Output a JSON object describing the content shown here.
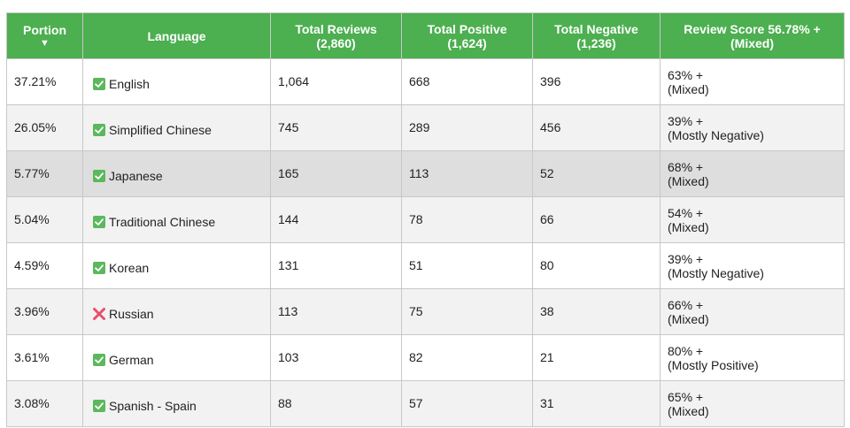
{
  "table": {
    "headers": {
      "portion": "Portion",
      "portion_sort": "▼",
      "language": "Language",
      "total_reviews_line1": "Total Reviews",
      "total_reviews_line2": "(2,860)",
      "total_positive_line1": "Total Positive",
      "total_positive_line2": "(1,624)",
      "total_negative_line1": "Total Negative",
      "total_negative_line2": "(1,236)",
      "review_score_line1": "Review Score 56.78% +",
      "review_score_line2": "(Mixed)"
    },
    "rows": [
      {
        "portion": "37.21%",
        "language": "English",
        "supported": true,
        "total": "1,064",
        "positive": "668",
        "negative": "396",
        "score": "63% +",
        "rating": "(Mixed)"
      },
      {
        "portion": "26.05%",
        "language": "Simplified Chinese",
        "supported": true,
        "total": "745",
        "positive": "289",
        "negative": "456",
        "score": "39% +",
        "rating": "(Mostly Negative)"
      },
      {
        "portion": "5.77%",
        "language": "Japanese",
        "supported": true,
        "total": "165",
        "positive": "113",
        "negative": "52",
        "score": "68% +",
        "rating": "(Mixed)"
      },
      {
        "portion": "5.04%",
        "language": "Traditional Chinese",
        "supported": true,
        "total": "144",
        "positive": "78",
        "negative": "66",
        "score": "54% +",
        "rating": "(Mixed)"
      },
      {
        "portion": "4.59%",
        "language": "Korean",
        "supported": true,
        "total": "131",
        "positive": "51",
        "negative": "80",
        "score": "39% +",
        "rating": "(Mostly Negative)"
      },
      {
        "portion": "3.96%",
        "language": "Russian",
        "supported": false,
        "total": "113",
        "positive": "75",
        "negative": "38",
        "score": "66% +",
        "rating": "(Mixed)"
      },
      {
        "portion": "3.61%",
        "language": "German",
        "supported": true,
        "total": "103",
        "positive": "82",
        "negative": "21",
        "score": "80% +",
        "rating": "(Mostly Positive)"
      },
      {
        "portion": "3.08%",
        "language": "Spanish - Spain",
        "supported": true,
        "total": "88",
        "positive": "57",
        "negative": "31",
        "score": "65% +",
        "rating": "(Mixed)"
      }
    ],
    "hovered_row": 2
  },
  "colors": {
    "header_bg": "#4caf50",
    "check_icon": "#5cb85c",
    "cross_icon": "#e8506a"
  },
  "icons": {
    "supported": "check-icon",
    "unsupported": "cross-icon"
  }
}
